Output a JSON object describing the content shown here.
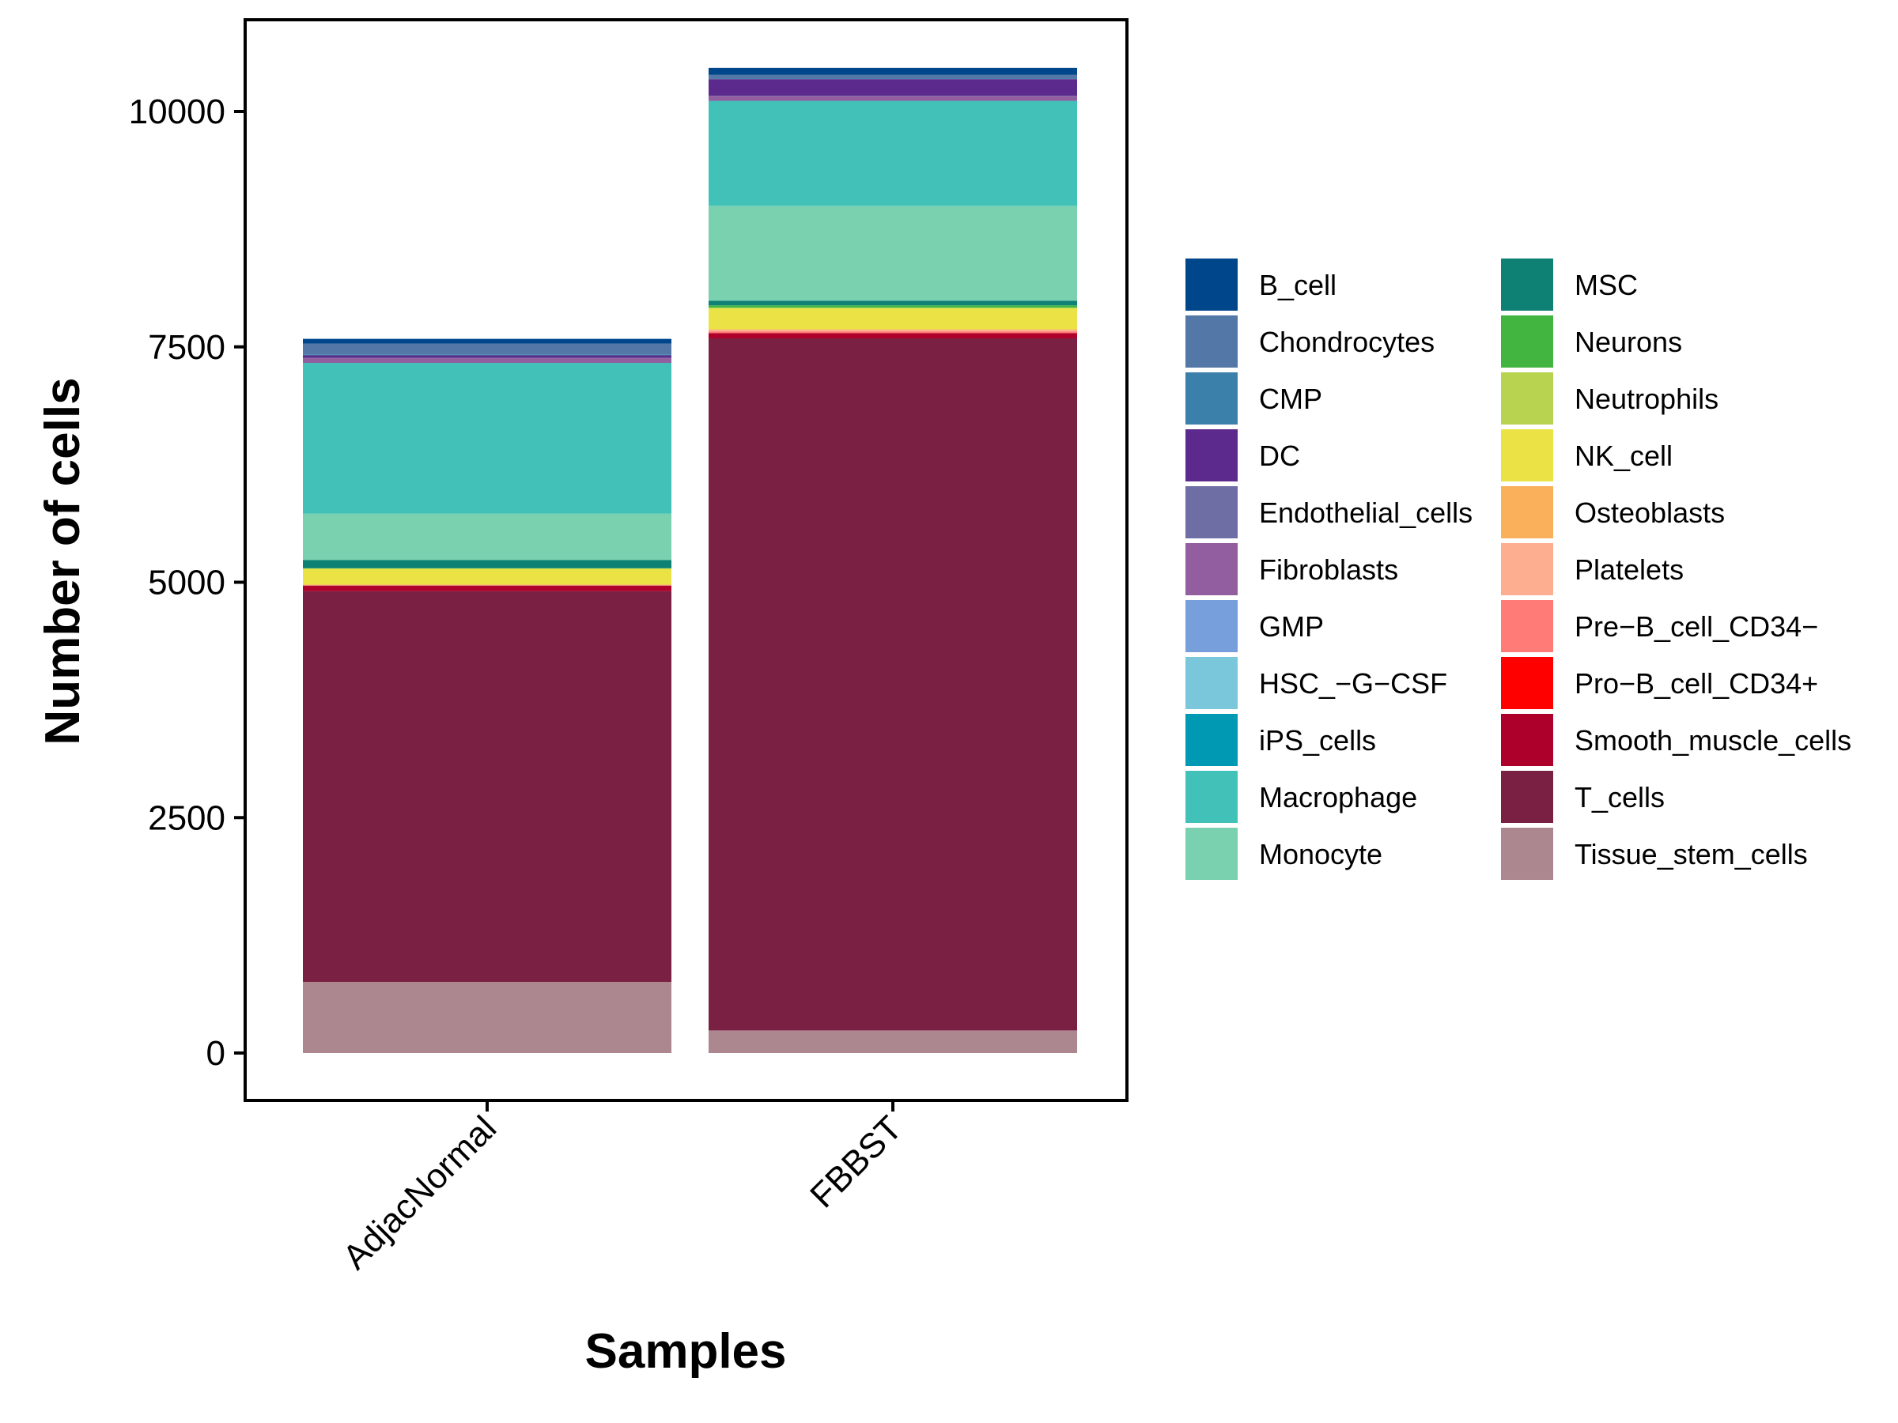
{
  "chart_data": {
    "type": "bar",
    "stacked": true,
    "title": "",
    "xlabel": "Samples",
    "ylabel": "Number of cells",
    "categories": [
      "AdjacNormal",
      "FBBST"
    ],
    "ylim": [
      -650,
      10950
    ],
    "yticks": [
      0,
      2500,
      5000,
      7500,
      10000
    ],
    "ytick_labels": [
      "0",
      "2500",
      "5000",
      "7500",
      "10000"
    ],
    "grid": false,
    "legend_position": "right",
    "legend_columns": 2,
    "series": [
      {
        "name": "B_cell",
        "color": "#00468B",
        "values": [
          50,
          75
        ]
      },
      {
        "name": "Chondrocytes",
        "color": "#5377A6",
        "values": [
          115,
          40
        ]
      },
      {
        "name": "CMP",
        "color": "#3B80AA",
        "values": [
          10,
          5
        ]
      },
      {
        "name": "DC",
        "color": "#5C2A8C",
        "values": [
          25,
          175
        ]
      },
      {
        "name": "Endothelial_cells",
        "color": "#6E6EA5",
        "values": [
          5,
          5
        ]
      },
      {
        "name": "Fibroblasts",
        "color": "#925E9F",
        "values": [
          50,
          50
        ]
      },
      {
        "name": "GMP",
        "color": "#779FDB",
        "values": [
          0,
          0
        ]
      },
      {
        "name": "HSC_-G-CSF",
        "color": "#7AC7DC",
        "values": [
          0,
          0
        ]
      },
      {
        "name": "iPS_cells",
        "color": "#0099B4",
        "values": [
          0,
          0
        ]
      },
      {
        "name": "Macrophage",
        "color": "#42C1B9",
        "values": [
          1600,
          1115
        ]
      },
      {
        "name": "Monocyte",
        "color": "#79D1B0",
        "values": [
          495,
          1007
        ]
      },
      {
        "name": "MSC",
        "color": "#0F8074",
        "values": [
          85,
          50
        ]
      },
      {
        "name": "Neurons",
        "color": "#42B540",
        "values": [
          5,
          25
        ]
      },
      {
        "name": "Neutrophils",
        "color": "#B8D350",
        "values": [
          0,
          8
        ]
      },
      {
        "name": "NK_cell",
        "color": "#EBE345",
        "values": [
          170,
          220
        ]
      },
      {
        "name": "Osteoblasts",
        "color": "#FAAF5A",
        "values": [
          3,
          8
        ]
      },
      {
        "name": "Platelets",
        "color": "#FDAE91",
        "values": [
          7,
          15
        ]
      },
      {
        "name": "Pre-B_cell_CD34-",
        "color": "#FF7B77",
        "values": [
          0,
          20
        ]
      },
      {
        "name": "Pro-B_cell_CD34+",
        "color": "#FF0000",
        "values": [
          0,
          0
        ]
      },
      {
        "name": "Smooth_muscle_cells",
        "color": "#AD002A",
        "values": [
          60,
          55
        ]
      },
      {
        "name": "T_cells",
        "color": "#7A2143",
        "values": [
          4150,
          7350
        ]
      },
      {
        "name": "Tissue_stem_cells",
        "color": "#AD8790",
        "values": [
          755,
          240
        ]
      }
    ]
  },
  "legend": {
    "labels": [
      "B_cell",
      "Chondrocytes",
      "CMP",
      "DC",
      "Endothelial_cells",
      "Fibroblasts",
      "GMP",
      "HSC_−G−CSF",
      "iPS_cells",
      "Macrophage",
      "Monocyte",
      "MSC",
      "Neurons",
      "Neutrophils",
      "NK_cell",
      "Osteoblasts",
      "Platelets",
      "Pre−B_cell_CD34−",
      "Pro−B_cell_CD34+",
      "Smooth_muscle_cells",
      "T_cells",
      "Tissue_stem_cells"
    ]
  }
}
